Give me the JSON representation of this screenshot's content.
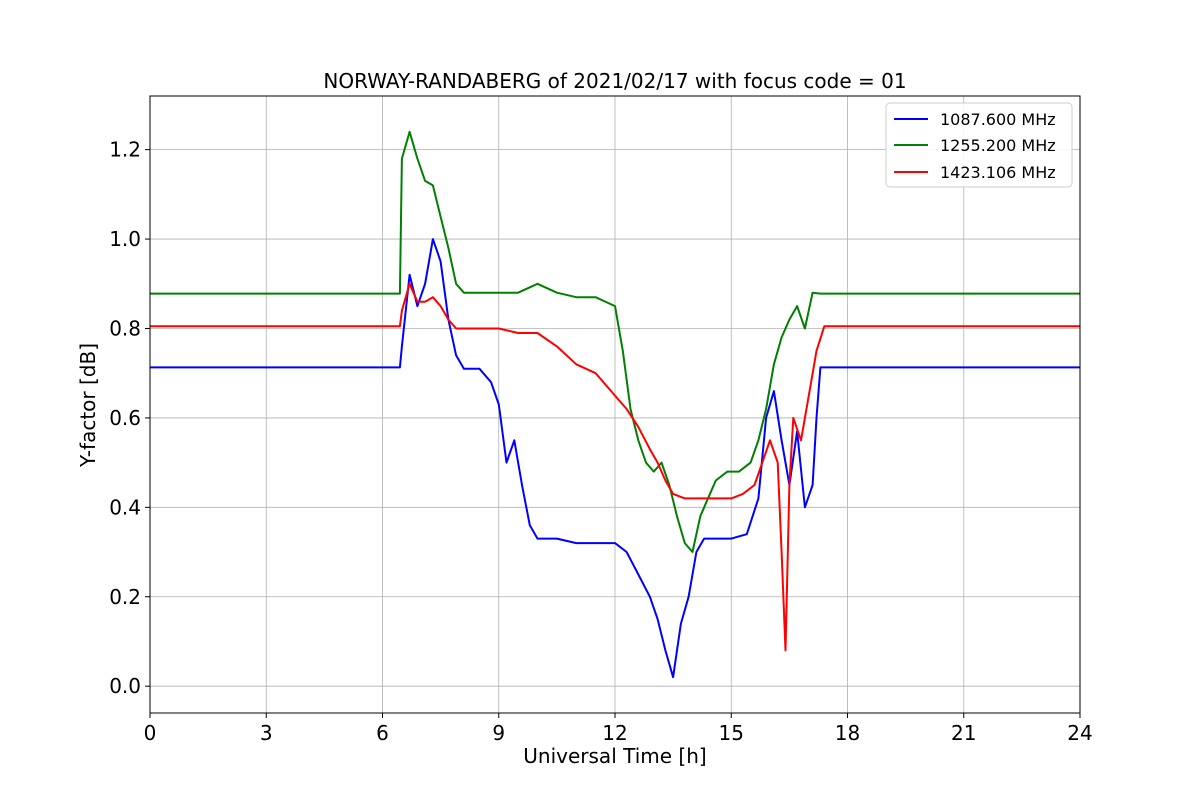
{
  "chart_data": {
    "type": "line",
    "title": "NORWAY-RANDABERG of 2021/02/17 with focus code = 01",
    "xlabel": "Universal Time [h]",
    "ylabel": "Y-factor [dB]",
    "xlim": [
      0,
      24
    ],
    "ylim": [
      -0.06,
      1.32
    ],
    "xticks": [
      0,
      3,
      6,
      9,
      12,
      15,
      18,
      21,
      24
    ],
    "yticks": [
      0.0,
      0.2,
      0.4,
      0.6,
      0.8,
      1.0,
      1.2
    ],
    "ytick_labels": [
      "0.0",
      "0.2",
      "0.4",
      "0.6",
      "0.8",
      "1.0",
      "1.2"
    ],
    "grid": true,
    "legend_position": "top-right",
    "series": [
      {
        "name": "1087.600 MHz",
        "color": "#0000ff",
        "x": [
          0,
          1,
          2,
          3,
          4,
          5,
          6,
          6.45,
          6.5,
          6.7,
          6.9,
          7.1,
          7.3,
          7.5,
          7.7,
          7.9,
          8.1,
          8.5,
          8.8,
          9.0,
          9.2,
          9.4,
          9.6,
          9.8,
          10.0,
          10.5,
          11.0,
          11.5,
          12.0,
          12.3,
          12.6,
          12.9,
          13.1,
          13.3,
          13.5,
          13.7,
          13.9,
          14.1,
          14.3,
          14.6,
          15.0,
          15.4,
          15.7,
          15.9,
          16.1,
          16.3,
          16.5,
          16.7,
          16.9,
          17.1,
          17.2,
          17.3,
          18,
          19,
          20,
          21,
          22,
          23,
          24
        ],
        "y": [
          0.713,
          0.713,
          0.713,
          0.713,
          0.713,
          0.713,
          0.713,
          0.713,
          0.76,
          0.92,
          0.85,
          0.9,
          1.0,
          0.95,
          0.82,
          0.74,
          0.71,
          0.71,
          0.68,
          0.63,
          0.5,
          0.55,
          0.45,
          0.36,
          0.33,
          0.33,
          0.32,
          0.32,
          0.32,
          0.3,
          0.25,
          0.2,
          0.15,
          0.08,
          0.02,
          0.14,
          0.2,
          0.3,
          0.33,
          0.33,
          0.33,
          0.34,
          0.42,
          0.6,
          0.66,
          0.55,
          0.45,
          0.57,
          0.4,
          0.45,
          0.6,
          0.713,
          0.713,
          0.713,
          0.713,
          0.713,
          0.713,
          0.713,
          0.713
        ]
      },
      {
        "name": "1255.200 MHz",
        "color": "#008000",
        "x": [
          0,
          1,
          2,
          3,
          4,
          5,
          6,
          6.45,
          6.5,
          6.7,
          6.9,
          7.1,
          7.3,
          7.5,
          7.7,
          7.9,
          8.1,
          8.5,
          9.0,
          9.5,
          10.0,
          10.5,
          11.0,
          11.5,
          12.0,
          12.2,
          12.4,
          12.6,
          12.8,
          13.0,
          13.2,
          13.4,
          13.6,
          13.8,
          14.0,
          14.2,
          14.4,
          14.6,
          14.9,
          15.2,
          15.5,
          15.7,
          15.9,
          16.1,
          16.3,
          16.5,
          16.7,
          16.9,
          17.1,
          17.3,
          17.5,
          18,
          19,
          20,
          21,
          22,
          23,
          24
        ],
        "y": [
          0.878,
          0.878,
          0.878,
          0.878,
          0.878,
          0.878,
          0.878,
          0.878,
          1.18,
          1.24,
          1.18,
          1.13,
          1.12,
          1.05,
          0.98,
          0.9,
          0.88,
          0.88,
          0.88,
          0.88,
          0.9,
          0.88,
          0.87,
          0.87,
          0.85,
          0.75,
          0.62,
          0.55,
          0.5,
          0.48,
          0.5,
          0.45,
          0.38,
          0.32,
          0.3,
          0.38,
          0.42,
          0.46,
          0.48,
          0.48,
          0.5,
          0.55,
          0.62,
          0.72,
          0.78,
          0.82,
          0.85,
          0.8,
          0.88,
          0.878,
          0.878,
          0.878,
          0.878,
          0.878,
          0.878,
          0.878,
          0.878,
          0.878
        ]
      },
      {
        "name": "1423.106 MHz",
        "color": "#ff0000",
        "x": [
          0,
          1,
          2,
          3,
          4,
          5,
          6,
          6.45,
          6.5,
          6.7,
          6.9,
          7.1,
          7.3,
          7.5,
          7.7,
          7.9,
          8.1,
          8.5,
          9.0,
          9.5,
          10.0,
          10.5,
          11.0,
          11.5,
          12.0,
          12.3,
          12.6,
          12.9,
          13.1,
          13.3,
          13.5,
          13.8,
          14.1,
          14.4,
          14.7,
          15.0,
          15.3,
          15.6,
          15.8,
          16.0,
          16.2,
          16.3,
          16.4,
          16.5,
          16.6,
          16.8,
          17.0,
          17.2,
          17.4,
          18,
          19,
          20,
          21,
          22,
          23,
          24
        ],
        "y": [
          0.805,
          0.805,
          0.805,
          0.805,
          0.805,
          0.805,
          0.805,
          0.805,
          0.84,
          0.9,
          0.86,
          0.86,
          0.87,
          0.85,
          0.82,
          0.8,
          0.8,
          0.8,
          0.8,
          0.79,
          0.79,
          0.76,
          0.72,
          0.7,
          0.65,
          0.62,
          0.58,
          0.53,
          0.5,
          0.46,
          0.43,
          0.42,
          0.42,
          0.42,
          0.42,
          0.42,
          0.43,
          0.45,
          0.5,
          0.55,
          0.5,
          0.3,
          0.08,
          0.45,
          0.6,
          0.55,
          0.65,
          0.75,
          0.805,
          0.805,
          0.805,
          0.805,
          0.805,
          0.805,
          0.805,
          0.805
        ]
      }
    ]
  }
}
